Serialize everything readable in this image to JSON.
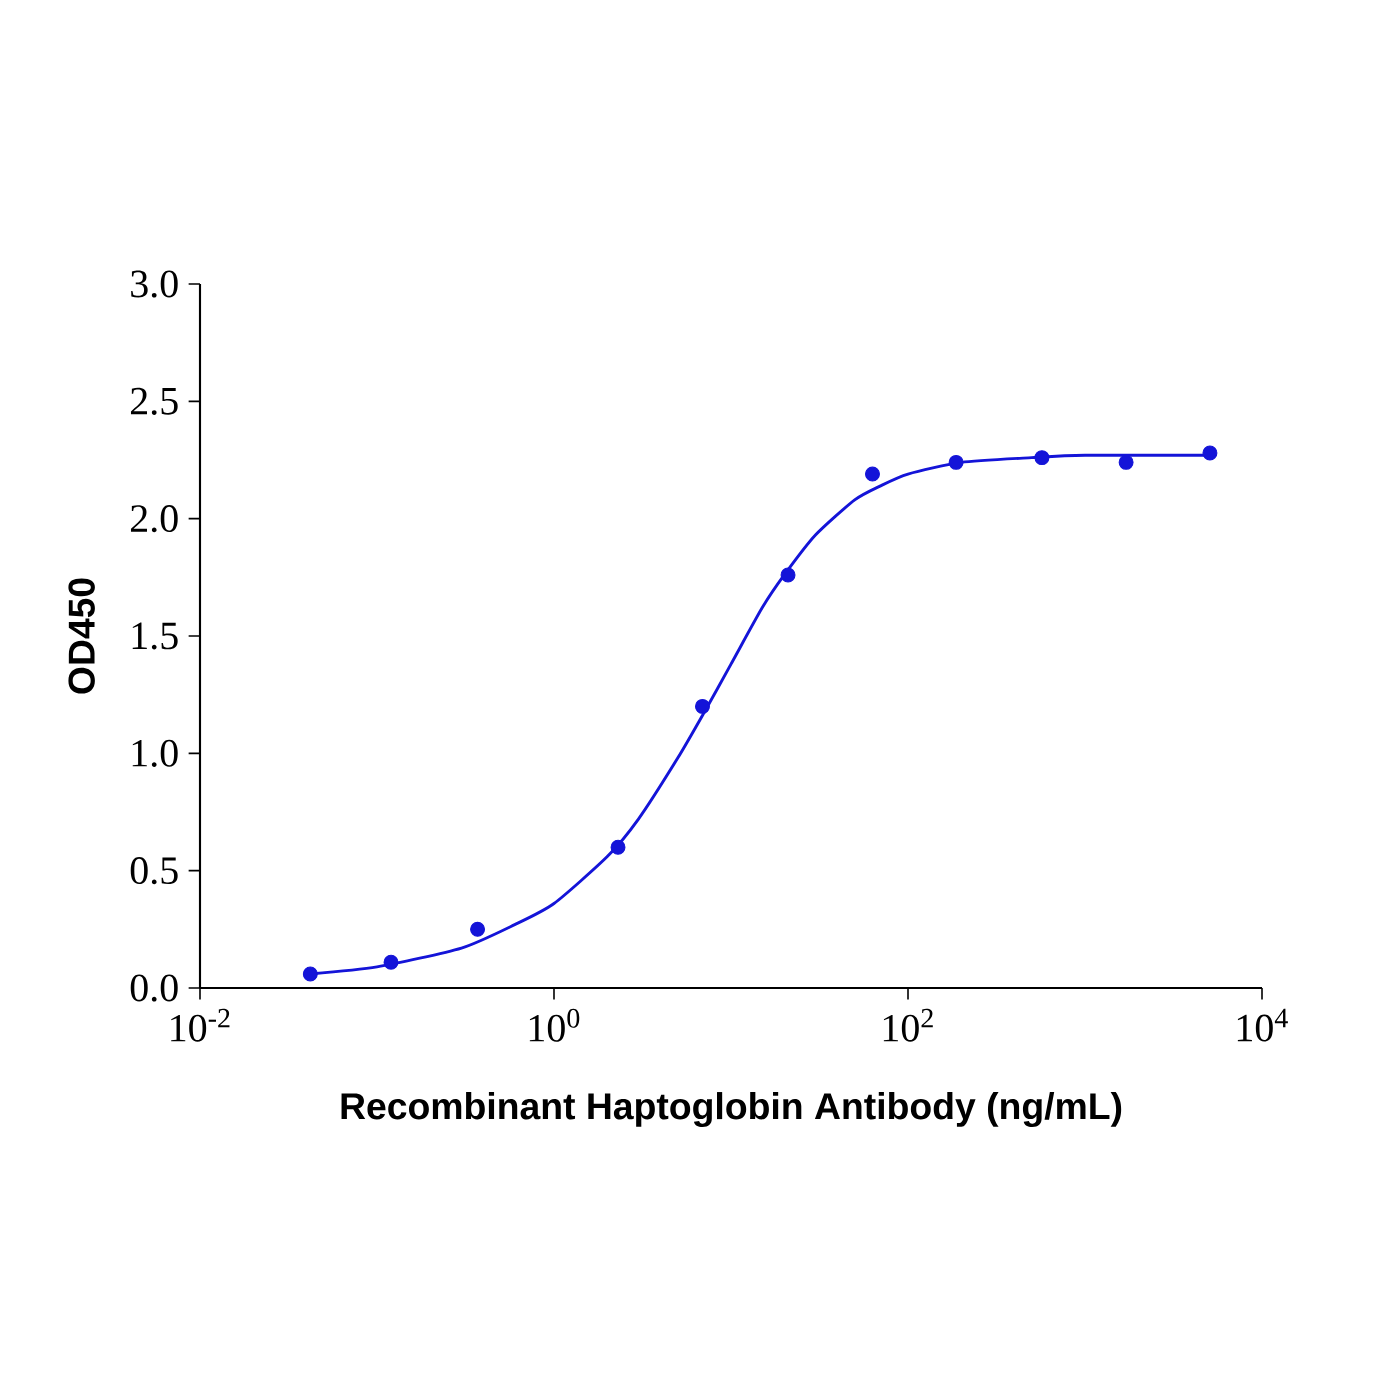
{
  "chart_data": {
    "type": "scatter",
    "xlabel": "Recombinant Haptoglobin Antibody (ng/mL)",
    "ylabel": "OD450",
    "log": "x",
    "grid": false,
    "xlim": [
      0.01,
      10000
    ],
    "ylim": [
      0,
      3
    ],
    "xticks": [
      {
        "value": 0.01,
        "label": "10$^{-2}$"
      },
      {
        "value": 1,
        "label": "10$^{0}$"
      },
      {
        "value": 100,
        "label": "10$^{2}$"
      },
      {
        "value": 10000,
        "label": "10$^{4}$"
      }
    ],
    "yticks": [
      {
        "value": 0,
        "label": "0.0"
      },
      {
        "value": 0.5,
        "label": "0.5"
      },
      {
        "value": 1,
        "label": "1.0"
      },
      {
        "value": 1.5,
        "label": "1.5"
      },
      {
        "value": 2,
        "label": "2.0"
      },
      {
        "value": 2.5,
        "label": "2.5"
      },
      {
        "value": 3,
        "label": "3.0"
      }
    ],
    "series": [
      {
        "marker": "circle",
        "color": "#1414d8",
        "x": [
          0.042,
          0.12,
          0.37,
          2.3,
          6.9,
          21,
          63,
          187,
          571,
          1707,
          5080
        ],
        "values": [
          0.06,
          0.11,
          0.25,
          0.6,
          1.2,
          1.76,
          2.19,
          2.24,
          2.26,
          2.24,
          2.28
        ]
      },
      {
        "type": "line",
        "color": "#1414d8",
        "marker": "none",
        "line_style": "solid",
        "x": [
          0.042,
          0.1,
          0.3,
          0.6,
          1,
          2,
          3,
          5,
          7,
          10,
          15,
          20,
          30,
          50,
          70,
          100,
          200,
          500,
          1000,
          5080
        ],
        "values": [
          0.06,
          0.09,
          0.17,
          0.27,
          0.36,
          0.56,
          0.72,
          0.98,
          1.17,
          1.38,
          1.62,
          1.76,
          1.93,
          2.08,
          2.14,
          2.19,
          2.24,
          2.26,
          2.27,
          2.27
        ]
      }
    ]
  }
}
